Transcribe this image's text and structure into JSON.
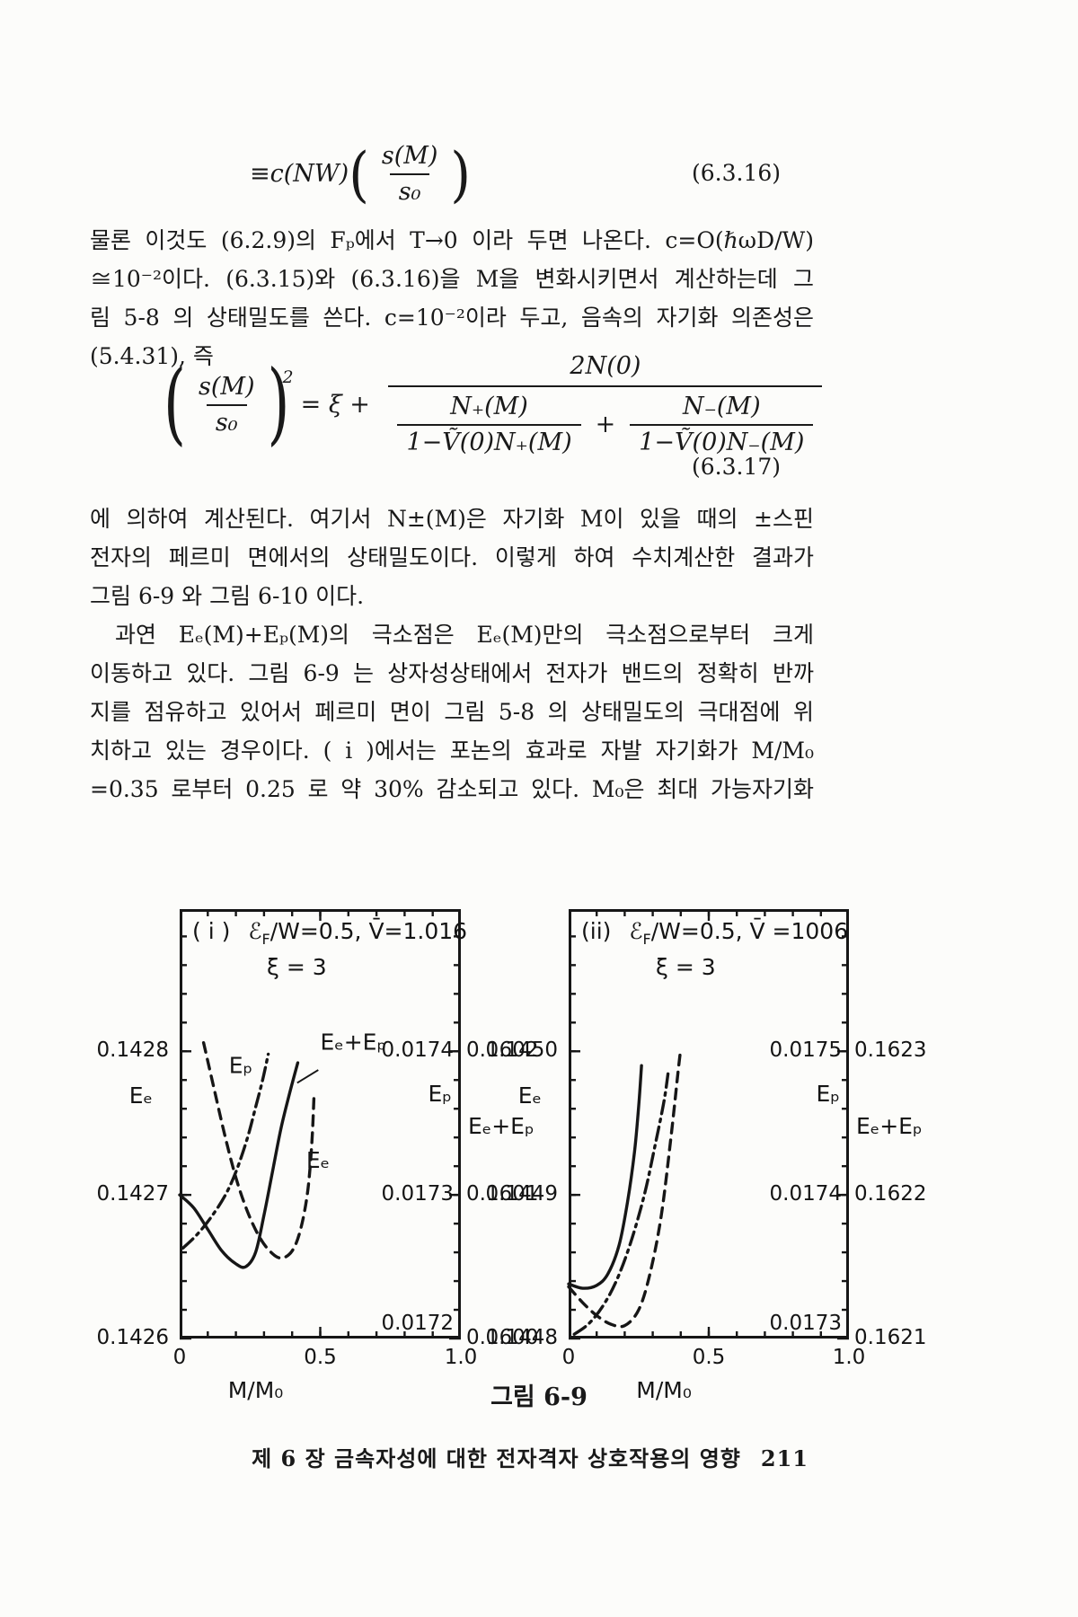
{
  "document": {
    "eq1": {
      "lead": "≡c(NW)",
      "lp": "(",
      "num": "s(M)",
      "den": "s₀",
      "rp": ")",
      "tag": "(6.3.16)"
    },
    "para1": [
      "물론 이것도 (6.2.9)의 Fₚ에서 T→0 이라 두면 나온다. c=O(ℏωD/W)",
      "≅10⁻²이다. (6.3.15)와 (6.3.16)을 M을 변화시키면서 계산하는데 그",
      "림 5-8 의 상태밀도를 쓴다. c=10⁻²이라 두고, 음속의 자기화 의존성은",
      "(5.4.31), 즉"
    ],
    "eq2": {
      "lp": "(",
      "lnum": "s(M)",
      "lden": "s₀",
      "rp": ")",
      "sup": "2",
      "mid": "= ξ + ",
      "num": "2N(0)",
      "f1num": "N₊(M)",
      "f1den": "1−Ṽ(0)N₊(M)",
      "plus": "+",
      "f2num": "N₋(M)",
      "f2den": "1−Ṽ(0)N₋(M)",
      "tag": "(6.3.17)"
    },
    "para2": [
      "에 의하여 계산된다. 여기서 N±(M)은 자기화 M이 있을 때의 ±스핀",
      "전자의 페르미 면에서의 상태밀도이다. 이렇게 하여 수치계산한 결과가",
      "그림 6-9 와 그림 6-10 이다.",
      "과연 Eₑ(M)+Eₚ(M)의 극소점은 Eₑ(M)만의 극소점으로부터 크게",
      "이동하고 있다. 그림 6-9 는 상자성상태에서 전자가 밴드의 정확히 반까",
      "지를 점유하고 있어서 페르미 면이 그림 5-8 의 상태밀도의 극대점에 위",
      "치하고 있는 경우이다. ( i )에서는 포논의 효과로 자발 자기화가 M/M₀",
      "=0.35 로부터 0.25 로 약 30% 감소되고 있다. M₀은 최대 가능자기화"
    ],
    "caption": "그림 6-9",
    "footer_text": "제 6 장  금속자성에 대한 전자격자 상호작용의 영향",
    "footer_page": "211"
  },
  "chart_data": [
    {
      "type": "line",
      "panel_label": "( i )",
      "header_symbol": "ℰ",
      "header_sub": "F",
      "header_rest": "/W=0.5, V̄=1.016",
      "xi_line": "ξ = 3",
      "xlabel": "M/M₀",
      "xlim": [
        0,
        1
      ],
      "ylim": [
        0.1426,
        0.142899
      ],
      "y_minor_step": 2e-05,
      "x_minor_step": 0.1,
      "x_ticks": [
        {
          "v": 0,
          "label": "0"
        },
        {
          "v": 0.5,
          "label": "0.5"
        },
        {
          "v": 1,
          "label": "1.0"
        }
      ],
      "left_axis": {
        "label": "Eₑ",
        "ticks": [
          {
            "v": 0.1428,
            "label": "0.1428"
          },
          {
            "v": 0.1427,
            "label": "0.1427"
          },
          {
            "v": 0.1426,
            "label": "0.1426"
          }
        ]
      },
      "right_axis": {
        "label": "Eₚ",
        "label2": "Eₑ+Eₚ",
        "ticks": [
          {
            "v": 0.1428,
            "ep": "0.0174",
            "sum": "0.1602"
          },
          {
            "v": 0.1427,
            "ep": "0.0173",
            "sum": "0.1601"
          },
          {
            "v": 0.1426,
            "ep": "0.0172",
            "sum": "0.1600"
          }
        ]
      },
      "series": [
        {
          "name": "Eₑ+Eₚ",
          "style": "solid",
          "points": [
            [
              0,
              0.1427
            ],
            [
              0.05,
              0.142691
            ],
            [
              0.1,
              0.142676
            ],
            [
              0.15,
              0.142661
            ],
            [
              0.2,
              0.142652
            ],
            [
              0.235,
              0.14265
            ],
            [
              0.27,
              0.14266
            ],
            [
              0.3,
              0.142686
            ],
            [
              0.33,
              0.142716
            ],
            [
              0.36,
              0.142746
            ],
            [
              0.39,
              0.14277
            ],
            [
              0.42,
              0.142792
            ]
          ]
        },
        {
          "name": "Eₑ",
          "style": "dashed",
          "points": [
            [
              0.085,
              0.142806
            ],
            [
              0.12,
              0.142776
            ],
            [
              0.16,
              0.142742
            ],
            [
              0.2,
              0.142712
            ],
            [
              0.24,
              0.142689
            ],
            [
              0.28,
              0.142672
            ],
            [
              0.32,
              0.142661
            ],
            [
              0.36,
              0.142656
            ],
            [
              0.4,
              0.142661
            ],
            [
              0.43,
              0.142676
            ],
            [
              0.455,
              0.142702
            ],
            [
              0.47,
              0.142736
            ],
            [
              0.478,
              0.14277
            ]
          ]
        },
        {
          "name": "Eₚ",
          "style": "dashdot",
          "points": [
            [
              0.012,
              0.142663
            ],
            [
              0.06,
              0.142672
            ],
            [
              0.11,
              0.142684
            ],
            [
              0.16,
              0.142699
            ],
            [
              0.2,
              0.142716
            ],
            [
              0.24,
              0.142739
            ],
            [
              0.27,
              0.142761
            ],
            [
              0.295,
              0.14278
            ],
            [
              0.315,
              0.142798
            ]
          ]
        }
      ],
      "annotations": [
        {
          "text": "Eₚ",
          "x": 0.175,
          "y": 0.14279
        },
        {
          "text": "Eₑ+Eₚ",
          "x": 0.5,
          "y": 0.142806,
          "leader": [
            [
              0.493,
              0.142787
            ],
            [
              0.418,
              0.142778
            ]
          ]
        },
        {
          "text": "Eₑ",
          "x": 0.45,
          "y": 0.142724
        }
      ]
    },
    {
      "type": "line",
      "panel_label": "(ii)",
      "header_symbol": "ℰ",
      "header_sub": "F",
      "header_rest": "/W=0.5, V̄ =1006",
      "xi_line": "ξ = 3",
      "xlabel": "M/M₀",
      "xlim": [
        0,
        1
      ],
      "ylim": [
        0.1448,
        0.145099
      ],
      "y_minor_step": 2e-05,
      "x_minor_step": 0.1,
      "x_ticks": [
        {
          "v": 0,
          "label": "0"
        },
        {
          "v": 0.5,
          "label": "0.5"
        },
        {
          "v": 1,
          "label": "1.0"
        }
      ],
      "left_axis": {
        "label": "Eₑ",
        "ticks": [
          {
            "v": 0.145,
            "label": "0.1450"
          },
          {
            "v": 0.1449,
            "label": "0.1449"
          },
          {
            "v": 0.1448,
            "label": "0.1448"
          }
        ]
      },
      "right_axis": {
        "label": "Eₚ",
        "label2": "Eₑ+Eₚ",
        "ticks": [
          {
            "v": 0.145,
            "ep": "0.0175",
            "sum": "0.1623"
          },
          {
            "v": 0.1449,
            "ep": "0.0174",
            "sum": "0.1622"
          },
          {
            "v": 0.1448,
            "ep": "0.0173",
            "sum": "0.1621"
          }
        ]
      },
      "series": [
        {
          "name": "Eₑ+Eₚ",
          "style": "solid",
          "points": [
            [
              0,
              0.144838
            ],
            [
              0.05,
              0.144835
            ],
            [
              0.1,
              0.144837
            ],
            [
              0.14,
              0.144845
            ],
            [
              0.18,
              0.144865
            ],
            [
              0.21,
              0.144895
            ],
            [
              0.235,
              0.14493
            ],
            [
              0.25,
              0.144962
            ],
            [
              0.26,
              0.14499
            ]
          ]
        },
        {
          "name": "Eₑ",
          "style": "dashed",
          "points": [
            [
              0,
              0.144836
            ],
            [
              0.05,
              0.144825
            ],
            [
              0.1,
              0.144816
            ],
            [
              0.15,
              0.14481
            ],
            [
              0.2,
              0.144809
            ],
            [
              0.25,
              0.14482
            ],
            [
              0.29,
              0.144845
            ],
            [
              0.33,
              0.144885
            ],
            [
              0.365,
              0.14494
            ],
            [
              0.39,
              0.144985
            ],
            [
              0.4,
              0.145002
            ]
          ]
        },
        {
          "name": "Eₚ",
          "style": "dashdot",
          "points": [
            [
              0.02,
              0.144803
            ],
            [
              0.07,
              0.14481
            ],
            [
              0.12,
              0.144822
            ],
            [
              0.17,
              0.14484
            ],
            [
              0.22,
              0.144866
            ],
            [
              0.27,
              0.1449
            ],
            [
              0.31,
              0.144936
            ],
            [
              0.34,
              0.144965
            ],
            [
              0.355,
              0.144985
            ]
          ]
        }
      ],
      "annotations": []
    }
  ]
}
